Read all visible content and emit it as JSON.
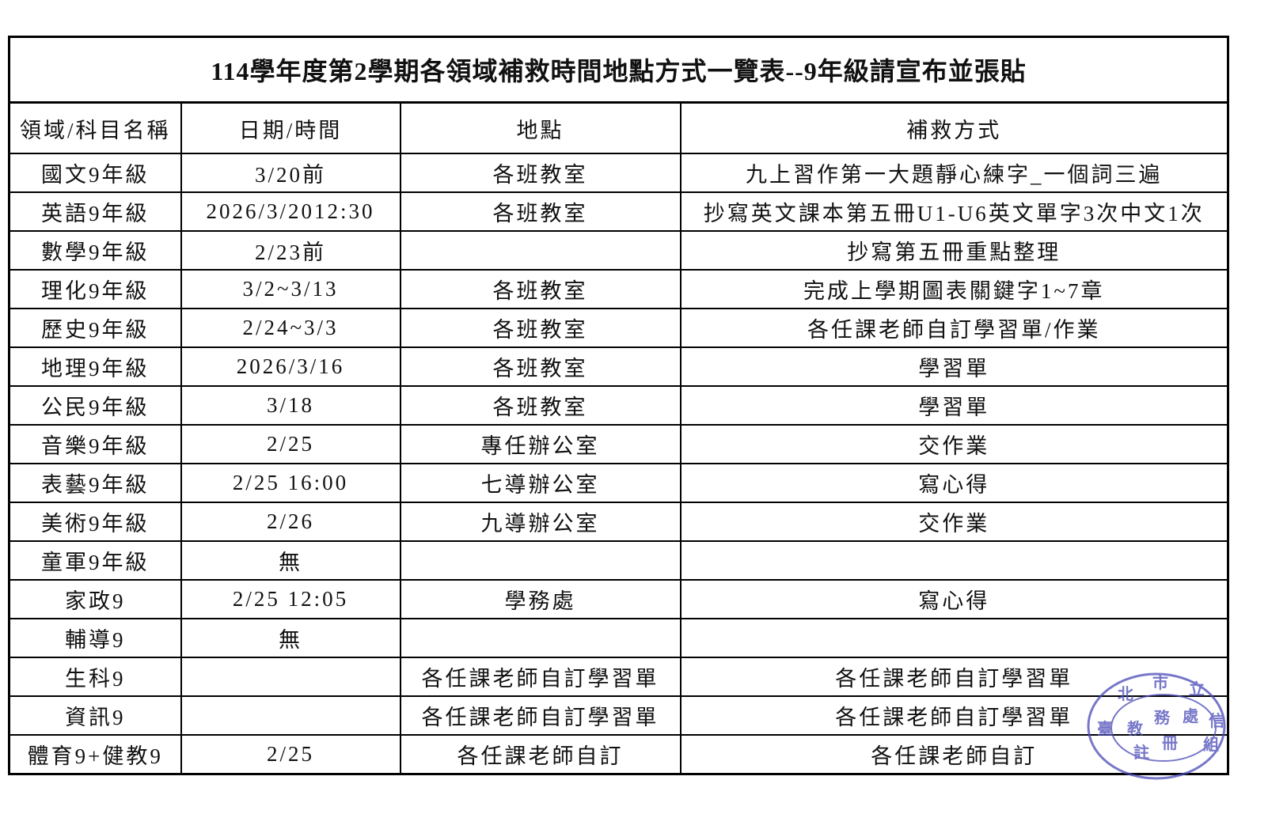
{
  "title": "114學年度第2學期各領域補救時間地點方式一覽表--9年級請宣布並張貼",
  "columns": [
    "領域/科目名稱",
    "日期/時間",
    "地點",
    "補救方式"
  ],
  "rows": [
    [
      "國文9年級",
      "3/20前",
      "各班教室",
      "九上習作第一大題靜心練字_一個詞三遍"
    ],
    [
      "英語9年級",
      "2026/3/2012:30",
      "各班教室",
      "抄寫英文課本第五冊U1-U6英文單字3次中文1次"
    ],
    [
      "數學9年級",
      "2/23前",
      "",
      "抄寫第五冊重點整理"
    ],
    [
      "理化9年級",
      "3/2~3/13",
      "各班教室",
      "完成上學期圖表關鍵字1~7章"
    ],
    [
      "歷史9年級",
      "2/24~3/3",
      "各班教室",
      "各任課老師自訂學習單/作業"
    ],
    [
      "地理9年級",
      "2026/3/16",
      "各班教室",
      "學習單"
    ],
    [
      "公民9年級",
      "3/18",
      "各班教室",
      "學習單"
    ],
    [
      "音樂9年級",
      "2/25",
      "專任辦公室",
      "交作業"
    ],
    [
      "表藝9年級",
      "2/25 16:00",
      "七導辦公室",
      "寫心得"
    ],
    [
      "美術9年級",
      "2/26",
      "九導辦公室",
      "交作業"
    ],
    [
      "童軍9年級",
      "無",
      "",
      ""
    ],
    [
      "家政9",
      "2/25 12:05",
      "學務處",
      "寫心得"
    ],
    [
      "輔導9",
      "無",
      "",
      ""
    ],
    [
      "生科9",
      "",
      "各任課老師自訂學習單",
      "各任課老師自訂學習單"
    ],
    [
      "資訊9",
      "",
      "各任課老師自訂學習單",
      "各任課老師自訂學習單"
    ],
    [
      "體育9+健教9",
      "2/25",
      "各任課老師自訂",
      "各任課老師自訂"
    ]
  ],
  "stamp": {
    "outer_text": "臺北市立信義國民中學",
    "inner_text": "教務處註冊組",
    "color": "#4a4ab8"
  }
}
